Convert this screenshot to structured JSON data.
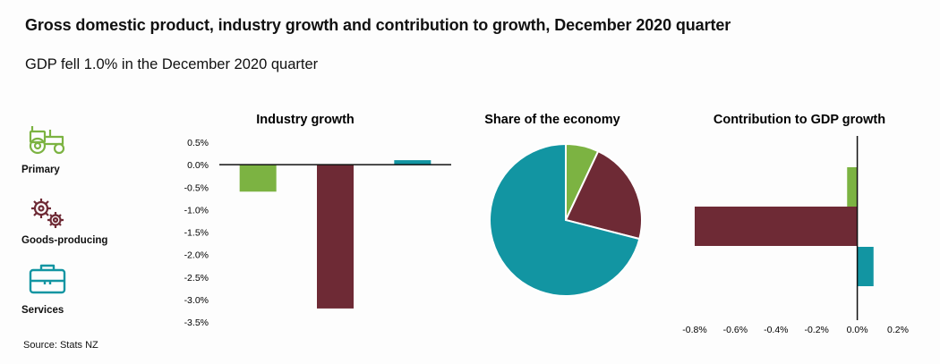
{
  "header": {
    "title": "Gross domestic product, industry growth and contribution to growth, December 2020 quarter",
    "subtitle": "GDP fell 1.0% in the December 2020 quarter"
  },
  "footer": {
    "source": "Source: Stats NZ"
  },
  "legend": [
    {
      "label": "Primary",
      "icon": "tractor-icon",
      "color": "#7cb342"
    },
    {
      "label": "Goods-producing",
      "icon": "gears-icon",
      "color": "#6e2a35"
    },
    {
      "label": "Services",
      "icon": "briefcase-icon",
      "color": "#1295a2"
    }
  ],
  "colors": {
    "primary": "#7cb342",
    "goods": "#6e2a35",
    "services": "#1295a2"
  },
  "chart_data": [
    {
      "type": "bar",
      "title": "Industry growth",
      "categories": [
        "Primary",
        "Goods-producing",
        "Services"
      ],
      "values": [
        -0.6,
        -3.2,
        0.1
      ],
      "ylim": [
        -3.5,
        0.5
      ],
      "yticks": [
        "0.5%",
        "0.0%",
        "-0.5%",
        "-1.0%",
        "-1.5%",
        "-2.0%",
        "-2.5%",
        "-3.0%",
        "-3.5%"
      ],
      "ytick_values": [
        0.5,
        0.0,
        -0.5,
        -1.0,
        -1.5,
        -2.0,
        -2.5,
        -3.0,
        -3.5
      ]
    },
    {
      "type": "pie",
      "title": "Share of the economy",
      "categories": [
        "Primary",
        "Goods-producing",
        "Services"
      ],
      "values": [
        7,
        22,
        71
      ]
    },
    {
      "type": "bar",
      "orientation": "horizontal",
      "title": "Contribution to GDP growth",
      "categories": [
        "Primary",
        "Goods-producing",
        "Services"
      ],
      "values": [
        -0.05,
        -0.8,
        0.08
      ],
      "xlim": [
        -0.8,
        0.2
      ],
      "xticks": [
        "-0.8%",
        "-0.6%",
        "-0.4%",
        "-0.2%",
        "0.0%",
        "0.2%"
      ],
      "xtick_values": [
        -0.8,
        -0.6,
        -0.4,
        -0.2,
        0.0,
        0.2
      ]
    }
  ]
}
